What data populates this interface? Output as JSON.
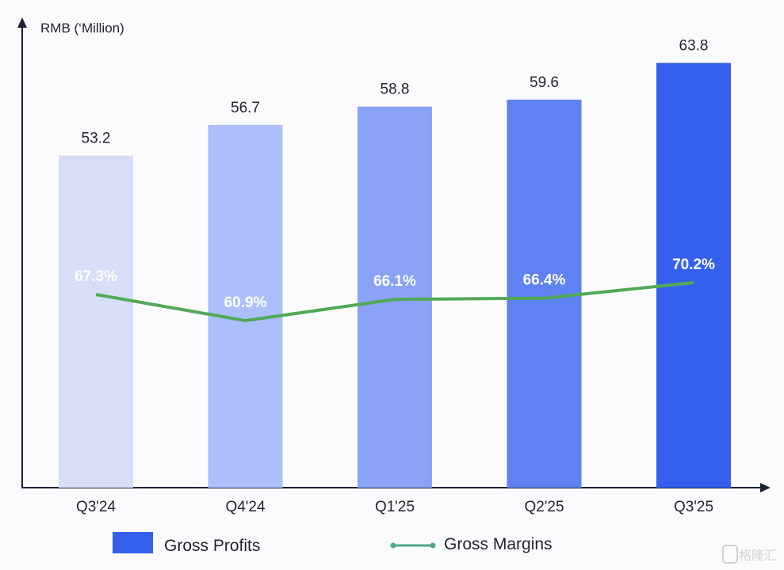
{
  "chart_data": {
    "type": "bar",
    "ylabel": "RMB (‘Million)",
    "categories": [
      "Q3'24",
      "Q4'24",
      "Q1'25",
      "Q2'25",
      "Q3'25"
    ],
    "ylim": [
      15.2,
      67
    ],
    "series": [
      {
        "name": "Gross Profits",
        "type": "bar",
        "values": [
          53.2,
          56.7,
          58.8,
          59.6,
          63.8
        ],
        "value_labels": [
          "53.2",
          "56.7",
          "58.8",
          "59.6",
          "63.8"
        ],
        "colors": [
          "#d6def8",
          "#adbffa",
          "#8aa3f7",
          "#5f82f2",
          "#3560ee"
        ]
      },
      {
        "name": "Gross Margins",
        "type": "line",
        "unit": "%",
        "values": [
          67.3,
          60.9,
          66.1,
          66.4,
          70.2
        ],
        "value_labels": [
          "67.3%",
          "60.9%",
          "66.1%",
          "66.4%",
          "70.2%"
        ],
        "color": "#52a957"
      }
    ],
    "legend": {
      "placement": "bottom",
      "bar_color": "#3560ee",
      "line_color": "#4fa88a"
    },
    "grid": false
  },
  "watermark": "格隆汇"
}
